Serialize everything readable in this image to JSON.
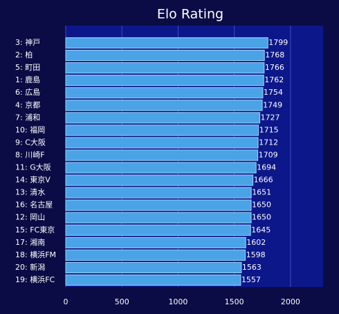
{
  "chart_data": {
    "type": "barh",
    "title": "Elo Rating",
    "categories": [
      "3: 神戸",
      "2: 柏",
      "5: 町田",
      "1: 鹿島",
      "6: 広島",
      "4: 京都",
      "7: 浦和",
      "10: 福岡",
      "9: C大阪",
      "8: 川崎F",
      "11: G大阪",
      "14: 東京V",
      "13: 清水",
      "16: 名古屋",
      "12: 岡山",
      "15: FC東京",
      "17: 湘南",
      "18: 横浜FM",
      "20: 新潟",
      "19: 横浜FC"
    ],
    "values": [
      1799,
      1768,
      1766,
      1762,
      1754,
      1749,
      1727,
      1715,
      1712,
      1709,
      1694,
      1666,
      1651,
      1650,
      1650,
      1645,
      1602,
      1598,
      1563,
      1557
    ],
    "color": "#4aa3e6",
    "xlim": [
      0,
      2290
    ],
    "xticks": [
      0,
      500,
      1000,
      1500,
      2000
    ],
    "grid": true
  }
}
